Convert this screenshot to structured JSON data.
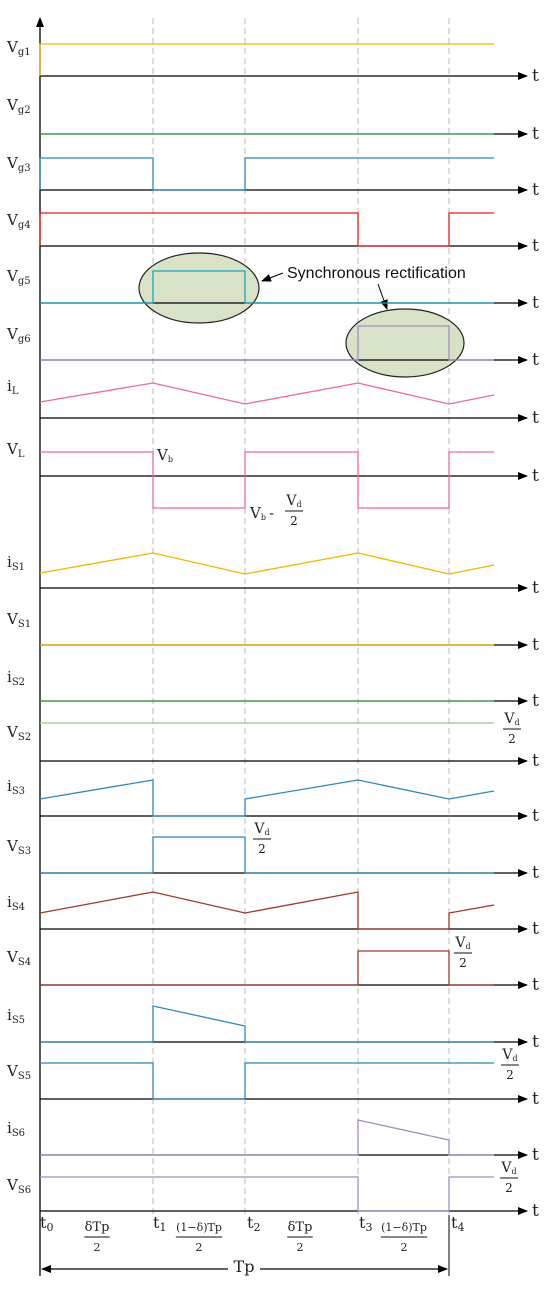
{
  "signals": [
    {
      "name": "g1",
      "base": "V",
      "sub": "g1",
      "color": "#f5b400"
    },
    {
      "name": "g2",
      "base": "V",
      "sub": "g2",
      "color": "#3fae49"
    },
    {
      "name": "g3",
      "base": "V",
      "sub": "g3",
      "color": "#2e86c1"
    },
    {
      "name": "g4",
      "base": "V",
      "sub": "g4",
      "color": "#e0201b"
    },
    {
      "name": "g5",
      "base": "V",
      "sub": "g5",
      "color": "#1aa7b8"
    },
    {
      "name": "g6",
      "base": "V",
      "sub": "g6",
      "color": "#a58bc9"
    },
    {
      "name": "iL",
      "base": "i",
      "sub": "L",
      "color": "#ec6aa0"
    },
    {
      "name": "VL",
      "base": "V",
      "sub": "L",
      "color": "#ec6aa0"
    },
    {
      "name": "iS1",
      "base": "i",
      "sub": "S1",
      "color": "#f5b400"
    },
    {
      "name": "VS1",
      "base": "V",
      "sub": "S1",
      "color": "#f5b400"
    },
    {
      "name": "iS2",
      "base": "i",
      "sub": "S2",
      "color": "#3fae49"
    },
    {
      "name": "VS2",
      "base": "V",
      "sub": "S2",
      "color": "#8fcf7f"
    },
    {
      "name": "iS3",
      "base": "i",
      "sub": "S3",
      "color": "#2e86c1"
    },
    {
      "name": "VS3",
      "base": "V",
      "sub": "S3",
      "color": "#2e86c1"
    },
    {
      "name": "iS4",
      "base": "i",
      "sub": "S4",
      "color": "#a0372b"
    },
    {
      "name": "VS4",
      "base": "V",
      "sub": "S4",
      "color": "#a0372b"
    },
    {
      "name": "iS5",
      "base": "i",
      "sub": "S5",
      "color": "#2e86c1"
    },
    {
      "name": "VS5",
      "base": "V",
      "sub": "S5",
      "color": "#2e86c1"
    },
    {
      "name": "iS6",
      "base": "i",
      "sub": "S6",
      "color": "#a58bc9"
    },
    {
      "name": "VS6",
      "base": "V",
      "sub": "S6",
      "color": "#a58bc9"
    }
  ],
  "axis_label": "t",
  "annotation": "Synchronous rectification",
  "vl_high": {
    "base": "V",
    "sub": "b"
  },
  "vl_low": {
    "base": "V",
    "sub": "b",
    "minus": "-",
    "num": "V",
    "num_sub": "d",
    "den": "2"
  },
  "vd_half": {
    "num": "V",
    "num_sub": "d",
    "den": "2"
  },
  "time_marks": [
    {
      "base": "t",
      "sub": "0"
    },
    {
      "base": "t",
      "sub": "1"
    },
    {
      "base": "t",
      "sub": "2"
    },
    {
      "base": "t",
      "sub": "3"
    },
    {
      "base": "t",
      "sub": "4"
    }
  ],
  "interval_labels": {
    "delta": {
      "num": "δTp",
      "den": "2"
    },
    "one_minus": {
      "num": "(1−δ)Tp",
      "den": "2"
    }
  },
  "period_label": "Tp"
}
